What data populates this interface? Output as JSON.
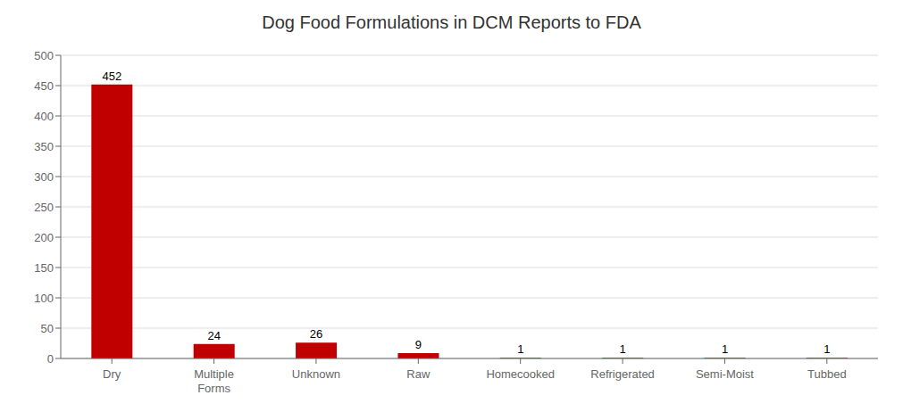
{
  "chart_data": {
    "type": "bar",
    "title": "Dog Food Formulations in DCM Reports to FDA",
    "categories": [
      "Dry",
      "Multiple\nForms",
      "Unknown",
      "Raw",
      "Homecooked",
      "Refrigerated",
      "Semi-Moist",
      "Tubbed"
    ],
    "values": [
      452,
      24,
      26,
      9,
      1,
      1,
      1,
      1
    ],
    "color": "#C00000",
    "ylim": [
      0,
      500
    ],
    "yticks": [
      0,
      50,
      100,
      150,
      200,
      250,
      300,
      350,
      400,
      450,
      500
    ],
    "grid": true,
    "data_labels": true
  }
}
